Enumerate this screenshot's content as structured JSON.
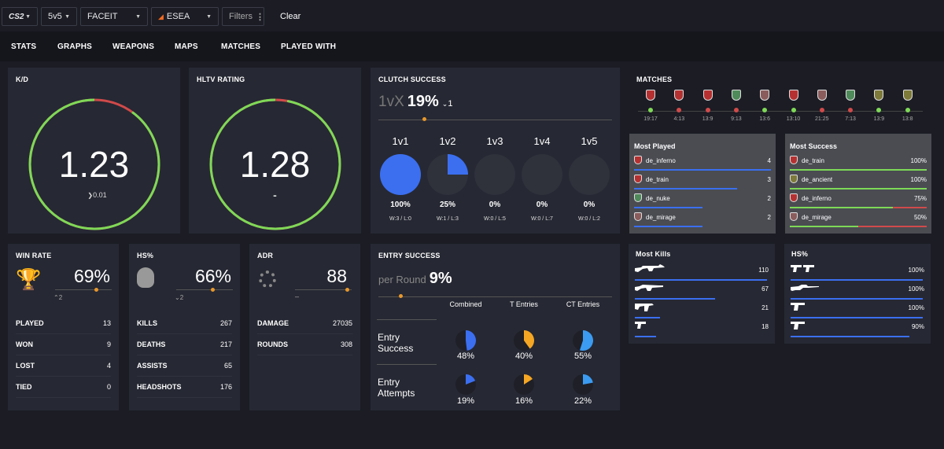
{
  "filters": {
    "game": "CS2",
    "mode": "5v5",
    "platform": "FACEIT",
    "league": "ESEA",
    "filters_label": "Filters",
    "clear_label": "Clear"
  },
  "nav": [
    "STATS",
    "GRAPHS",
    "WEAPONS",
    "MAPS",
    "MATCHES",
    "PLAYED WITH"
  ],
  "kd": {
    "title": "K/D",
    "value": "1.23",
    "change": "0.01",
    "fraction": 0.9
  },
  "hltv": {
    "title": "HLTV RATING",
    "value": "1.28",
    "change": "-",
    "fraction": 0.97
  },
  "clutch": {
    "title": "CLUTCH SUCCESS",
    "prefix": "1vX",
    "value": "19%",
    "change": "1",
    "items": [
      {
        "label": "1v1",
        "pct": "100%",
        "fraction": 1.0,
        "record": "W:3 / L:0"
      },
      {
        "label": "1v2",
        "pct": "25%",
        "fraction": 0.25,
        "record": "W:1 / L:3"
      },
      {
        "label": "1v3",
        "pct": "0%",
        "fraction": 0,
        "record": "W:0 / L:5"
      },
      {
        "label": "1v4",
        "pct": "0%",
        "fraction": 0,
        "record": "W:0 / L:7"
      },
      {
        "label": "1v5",
        "pct": "0%",
        "fraction": 0,
        "record": "W:0 / L:2"
      }
    ]
  },
  "matches": {
    "title": "MATCHES",
    "list": [
      {
        "score": "19:17",
        "result": "win",
        "team": "red"
      },
      {
        "score": "4:13",
        "result": "loss",
        "team": "red"
      },
      {
        "score": "13:9",
        "result": "loss",
        "team": "red"
      },
      {
        "score": "9:13",
        "result": "loss",
        "team": "green"
      },
      {
        "score": "13:6",
        "result": "win",
        "team": "grey"
      },
      {
        "score": "13:10",
        "result": "win",
        "team": "red"
      },
      {
        "score": "21:25",
        "result": "loss",
        "team": "grey"
      },
      {
        "score": "7:13",
        "result": "loss",
        "team": "green"
      },
      {
        "score": "13:9",
        "result": "win",
        "team": "olive"
      },
      {
        "score": "13:8",
        "result": "win",
        "team": "olive"
      }
    ]
  },
  "most_played": {
    "title": "Most Played",
    "maps": [
      {
        "name": "de_inferno",
        "value": "4",
        "fraction": 1.0,
        "icon": "red"
      },
      {
        "name": "de_train",
        "value": "3",
        "fraction": 0.75,
        "icon": "red"
      },
      {
        "name": "de_nuke",
        "value": "2",
        "fraction": 0.5,
        "icon": "green"
      },
      {
        "name": "de_mirage",
        "value": "2",
        "fraction": 0.5,
        "icon": "grey"
      }
    ]
  },
  "most_success": {
    "title": "Most Success",
    "maps": [
      {
        "name": "de_train",
        "value": "100%",
        "fraction": 1.0,
        "icon": "red"
      },
      {
        "name": "de_ancient",
        "value": "100%",
        "fraction": 1.0,
        "icon": "olive"
      },
      {
        "name": "de_inferno",
        "value": "75%",
        "fraction": 0.75,
        "icon": "red"
      },
      {
        "name": "de_mirage",
        "value": "50%",
        "fraction": 0.5,
        "icon": "grey"
      }
    ]
  },
  "winrate": {
    "title": "WIN RATE",
    "value": "69%",
    "change": "2",
    "rows": [
      {
        "label": "PLAYED",
        "value": "13"
      },
      {
        "label": "WON",
        "value": "9"
      },
      {
        "label": "LOST",
        "value": "4"
      },
      {
        "label": "TIED",
        "value": "0"
      }
    ]
  },
  "hs": {
    "title": "HS%",
    "value": "66%",
    "change": "2",
    "rows": [
      {
        "label": "KILLS",
        "value": "267"
      },
      {
        "label": "DEATHS",
        "value": "217"
      },
      {
        "label": "ASSISTS",
        "value": "65"
      },
      {
        "label": "HEADSHOTS",
        "value": "176"
      }
    ]
  },
  "adr": {
    "title": "ADR",
    "value": "88",
    "change": "–",
    "rows": [
      {
        "label": "DAMAGE",
        "value": "27035"
      },
      {
        "label": "ROUNDS",
        "value": "308"
      }
    ]
  },
  "entry": {
    "title": "ENTRY SUCCESS",
    "prefix": "per Round",
    "value": "9%",
    "columns": [
      "Combined",
      "T Entries",
      "CT Entries"
    ],
    "row1_label": "Entry Success",
    "row2_label": "Entry Attempts",
    "success": [
      {
        "pct": "48%",
        "fraction": 0.48
      },
      {
        "pct": "40%",
        "fraction": 0.4
      },
      {
        "pct": "55%",
        "fraction": 0.55
      }
    ],
    "attempts": [
      {
        "pct": "19%",
        "fraction": 0.19
      },
      {
        "pct": "16%",
        "fraction": 0.16
      },
      {
        "pct": "22%",
        "fraction": 0.22
      }
    ]
  },
  "most_kills": {
    "title": "Most Kills",
    "weapons": [
      {
        "icon": "rifle-ak-icon",
        "value": "110",
        "fraction": 1.0
      },
      {
        "icon": "rifle-scar-icon",
        "value": "67",
        "fraction": 0.61
      },
      {
        "icon": "smg-icon",
        "value": "21",
        "fraction": 0.19
      },
      {
        "icon": "pistol-icon",
        "value": "18",
        "fraction": 0.16
      }
    ]
  },
  "hs_weapons": {
    "title": "HS%",
    "weapons": [
      {
        "icon": "pistol-dual-icon",
        "value": "100%",
        "fraction": 1.0
      },
      {
        "icon": "rifle-scout-icon",
        "value": "100%",
        "fraction": 1.0
      },
      {
        "icon": "pistol-deagle-icon",
        "value": "100%",
        "fraction": 1.0
      },
      {
        "icon": "pistol-usp-icon",
        "value": "90%",
        "fraction": 0.9
      }
    ]
  },
  "colors": {
    "green": "#7ed957",
    "red": "#d04a4a",
    "blue": "#3b6ff0",
    "orange": "#f5a623",
    "accent": "#e8972a"
  }
}
